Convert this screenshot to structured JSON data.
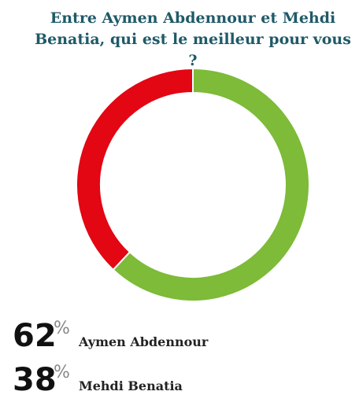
{
  "chart_data": {
    "type": "pie",
    "donut": true,
    "title": "Entre Aymen Abdennour et Mehdi Benatia, qui est le meilleur pour vous ?",
    "categories": [
      "Aymen Abdennour",
      "Mehdi Benatia"
    ],
    "values": [
      62,
      38
    ],
    "unit": "%",
    "colors": [
      "#7dbb38",
      "#e30613"
    ]
  }
}
